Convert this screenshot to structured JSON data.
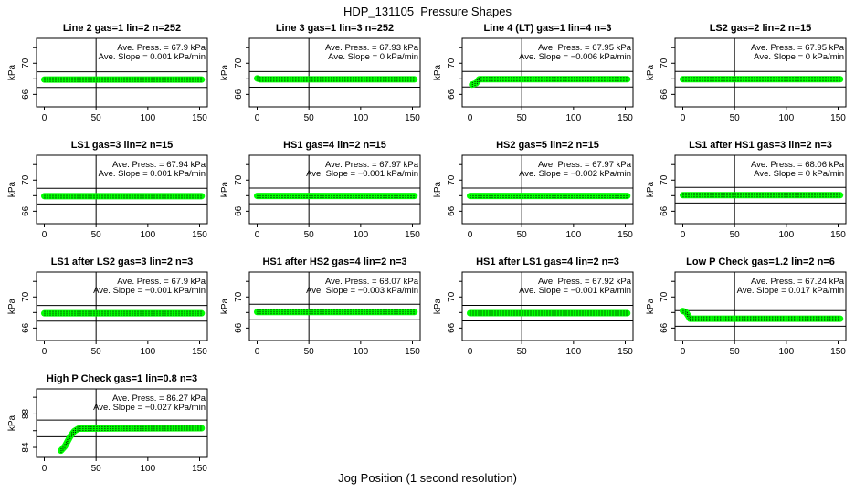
{
  "page_title": "HDP_131105  Pressure Shapes",
  "x_axis_label": "Jog Position (1 second resolution)",
  "y_axis_label": "kPa",
  "colors": {
    "data_point": "#00ff00",
    "axis": "#000000",
    "text": "#000000",
    "background": "#ffffff"
  },
  "axes": {
    "xlim": [
      -7.5,
      157.5
    ],
    "xticks": [
      0,
      50,
      100,
      150
    ],
    "vline_x": 50
  },
  "chart_data": [
    {
      "type": "scatter",
      "title": "Line 2 gas=1 lin=2 n=252",
      "ave_press_label": "Ave. Press. = 67.9 kPa",
      "ave_slope_label": "Ave. Slope = 0.001 kPa/min",
      "ave_press_kpa": 67.9,
      "ave_slope_kpa_per_min": 0.001,
      "ylim": [
        64.4,
        73.2
      ],
      "yticks": [
        66,
        68,
        70,
        72
      ],
      "ytick_labels": [
        66,
        70
      ],
      "ref_lines": [
        66.9,
        68.9
      ],
      "profile": [
        [
          0,
          67.9
        ],
        [
          152,
          67.9
        ]
      ]
    },
    {
      "type": "scatter",
      "title": "Line 3 gas=1 lin=3 n=252",
      "ave_press_label": "Ave. Press. = 67.93 kPa",
      "ave_slope_label": "Ave. Slope = 0 kPa/min",
      "ave_press_kpa": 67.93,
      "ave_slope_kpa_per_min": 0,
      "ylim": [
        64.4,
        73.2
      ],
      "yticks": [
        66,
        68,
        70,
        72
      ],
      "ytick_labels": [
        66,
        70
      ],
      "ref_lines": [
        66.93,
        68.93
      ],
      "profile": [
        [
          0,
          68.05
        ],
        [
          3,
          67.93
        ],
        [
          152,
          67.93
        ]
      ]
    },
    {
      "type": "scatter",
      "title": "Line 4 (LT) gas=1 lin=4 n=3",
      "ave_press_label": "Ave. Press. = 67.95 kPa",
      "ave_slope_label": "Ave. Slope = −0.006 kPa/min",
      "ave_press_kpa": 67.95,
      "ave_slope_kpa_per_min": -0.006,
      "ylim": [
        64.4,
        73.2
      ],
      "yticks": [
        66,
        68,
        70,
        72
      ],
      "ytick_labels": [
        66,
        70
      ],
      "ref_lines": [
        66.95,
        68.95
      ],
      "profile": [
        [
          2,
          67.25
        ],
        [
          6,
          67.45
        ],
        [
          9,
          67.95
        ],
        [
          152,
          67.95
        ]
      ]
    },
    {
      "type": "scatter",
      "title": "LS2 gas=2 lin=2 n=15",
      "ave_press_label": "Ave. Press. = 67.95 kPa",
      "ave_slope_label": "Ave. Slope = 0 kPa/min",
      "ave_press_kpa": 67.95,
      "ave_slope_kpa_per_min": 0,
      "ylim": [
        64.4,
        73.2
      ],
      "yticks": [
        66,
        68,
        70,
        72
      ],
      "ytick_labels": [
        66,
        70
      ],
      "ref_lines": [
        66.95,
        68.95
      ],
      "profile": [
        [
          0,
          67.95
        ],
        [
          152,
          67.95
        ]
      ]
    },
    {
      "type": "scatter",
      "title": "LS1 gas=3 lin=2 n=15",
      "ave_press_label": "Ave. Press. = 67.94 kPa",
      "ave_slope_label": "Ave. Slope = 0.001 kPa/min",
      "ave_press_kpa": 67.94,
      "ave_slope_kpa_per_min": 0.001,
      "ylim": [
        64.4,
        73.2
      ],
      "yticks": [
        66,
        68,
        70,
        72
      ],
      "ytick_labels": [
        66,
        70
      ],
      "ref_lines": [
        66.94,
        68.94
      ],
      "profile": [
        [
          0,
          67.94
        ],
        [
          152,
          67.94
        ]
      ]
    },
    {
      "type": "scatter",
      "title": "HS1 gas=4 lin=2 n=15",
      "ave_press_label": "Ave. Press. = 67.97 kPa",
      "ave_slope_label": "Ave. Slope = −0.001 kPa/min",
      "ave_press_kpa": 67.97,
      "ave_slope_kpa_per_min": -0.001,
      "ylim": [
        64.4,
        73.2
      ],
      "yticks": [
        66,
        68,
        70,
        72
      ],
      "ytick_labels": [
        66,
        70
      ],
      "ref_lines": [
        66.97,
        68.97
      ],
      "profile": [
        [
          0,
          67.97
        ],
        [
          152,
          67.97
        ]
      ]
    },
    {
      "type": "scatter",
      "title": "HS2 gas=5 lin=2 n=15",
      "ave_press_label": "Ave. Press. = 67.97 kPa",
      "ave_slope_label": "Ave. Slope = −0.002 kPa/min",
      "ave_press_kpa": 67.97,
      "ave_slope_kpa_per_min": -0.002,
      "ylim": [
        64.4,
        73.2
      ],
      "yticks": [
        66,
        68,
        70,
        72
      ],
      "ytick_labels": [
        66,
        70
      ],
      "ref_lines": [
        66.97,
        68.97
      ],
      "profile": [
        [
          0,
          67.97
        ],
        [
          152,
          67.97
        ]
      ]
    },
    {
      "type": "scatter",
      "title": "LS1 after HS1 gas=3 lin=2 n=3",
      "ave_press_label": "Ave. Press. = 68.06 kPa",
      "ave_slope_label": "Ave. Slope = 0 kPa/min",
      "ave_press_kpa": 68.06,
      "ave_slope_kpa_per_min": 0,
      "ylim": [
        64.4,
        73.2
      ],
      "yticks": [
        66,
        68,
        70,
        72
      ],
      "ytick_labels": [
        66,
        70
      ],
      "ref_lines": [
        67.06,
        69.06
      ],
      "profile": [
        [
          0,
          68.06
        ],
        [
          152,
          68.06
        ]
      ]
    },
    {
      "type": "scatter",
      "title": "LS1 after LS2 gas=3 lin=2 n=3",
      "ave_press_label": "Ave. Press. = 67.9 kPa",
      "ave_slope_label": "Ave. Slope = −0.001 kPa/min",
      "ave_press_kpa": 67.9,
      "ave_slope_kpa_per_min": -0.001,
      "ylim": [
        64.4,
        73.2
      ],
      "yticks": [
        66,
        68,
        70,
        72
      ],
      "ytick_labels": [
        66,
        70
      ],
      "ref_lines": [
        66.9,
        68.9
      ],
      "profile": [
        [
          0,
          67.9
        ],
        [
          152,
          67.9
        ]
      ]
    },
    {
      "type": "scatter",
      "title": "HS1 after HS2 gas=4 lin=2 n=3",
      "ave_press_label": "Ave. Press. = 68.07 kPa",
      "ave_slope_label": "Ave. Slope = −0.003 kPa/min",
      "ave_press_kpa": 68.07,
      "ave_slope_kpa_per_min": -0.003,
      "ylim": [
        64.4,
        73.2
      ],
      "yticks": [
        66,
        68,
        70,
        72
      ],
      "ytick_labels": [
        66,
        70
      ],
      "ref_lines": [
        67.07,
        69.07
      ],
      "profile": [
        [
          0,
          68.07
        ],
        [
          152,
          68.07
        ]
      ]
    },
    {
      "type": "scatter",
      "title": "HS1 after LS1 gas=4 lin=2 n=3",
      "ave_press_label": "Ave. Press. = 67.92 kPa",
      "ave_slope_label": "Ave. Slope = −0.001 kPa/min",
      "ave_press_kpa": 67.92,
      "ave_slope_kpa_per_min": -0.001,
      "ylim": [
        64.4,
        73.2
      ],
      "yticks": [
        66,
        68,
        70,
        72
      ],
      "ytick_labels": [
        66,
        70
      ],
      "ref_lines": [
        66.92,
        68.92
      ],
      "profile": [
        [
          0,
          67.92
        ],
        [
          152,
          67.92
        ]
      ]
    },
    {
      "type": "scatter",
      "title": "Low P Check gas=1.2 lin=2 n=6",
      "ave_press_label": "Ave. Press. = 67.24 kPa",
      "ave_slope_label": "Ave. Slope = 0.017 kPa/min",
      "ave_press_kpa": 67.24,
      "ave_slope_kpa_per_min": 0.017,
      "ylim": [
        64.4,
        73.2
      ],
      "yticks": [
        66,
        68,
        70,
        72
      ],
      "ytick_labels": [
        66,
        70
      ],
      "ref_lines": [
        66.24,
        68.24
      ],
      "profile": [
        [
          0,
          68.2
        ],
        [
          3,
          68.05
        ],
        [
          7,
          67.2
        ],
        [
          152,
          67.2
        ]
      ]
    },
    {
      "type": "scatter",
      "title": "High P Check gas=1 lin=0.8 n=3",
      "ave_press_label": "Ave. Press. = 86.27 kPa",
      "ave_slope_label": "Ave. Slope = −0.027 kPa/min",
      "ave_press_kpa": 86.27,
      "ave_slope_kpa_per_min": -0.027,
      "ylim": [
        82.8,
        91.0
      ],
      "yticks": [
        84,
        86,
        88,
        90
      ],
      "ytick_labels": [
        84,
        88
      ],
      "ref_lines": [
        85.27,
        87.27
      ],
      "profile": [
        [
          16,
          83.6
        ],
        [
          20,
          84.15
        ],
        [
          25,
          85.3
        ],
        [
          29,
          85.95
        ],
        [
          33,
          86.25
        ],
        [
          152,
          86.3
        ]
      ]
    }
  ]
}
